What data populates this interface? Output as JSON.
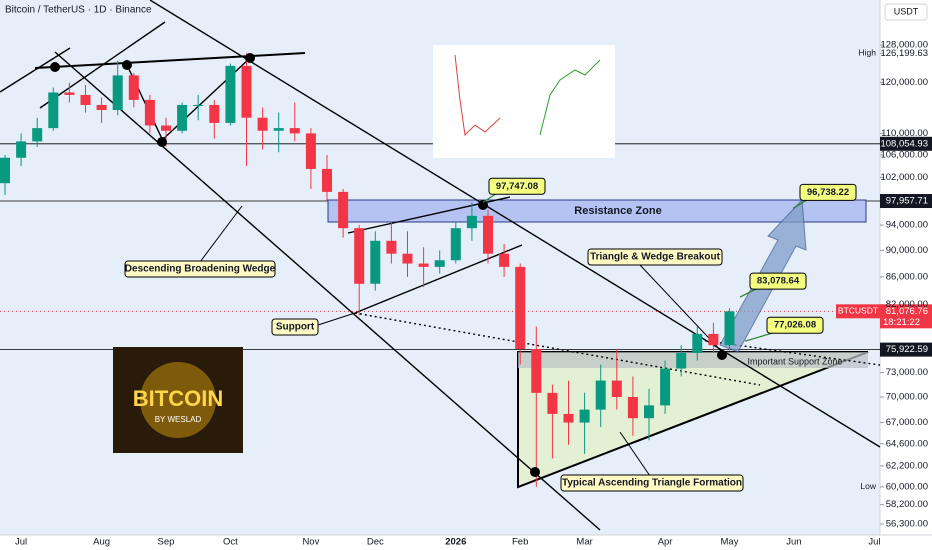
{
  "chart_data": {
    "type": "candlestick",
    "title": "Bitcoin / TetherUS · 1D · Binance",
    "currency": "USDT",
    "categories": [
      null,
      "Jul",
      null,
      null,
      null,
      null,
      "Aug",
      null,
      null,
      null,
      "Sep",
      null,
      null,
      null,
      "Oct",
      null,
      null,
      null,
      null,
      "Nov",
      null,
      null,
      null,
      "Dec",
      null,
      null,
      null,
      null,
      "2026",
      null,
      null,
      null,
      "Feb",
      null,
      null,
      null,
      "Mar",
      null,
      null,
      null,
      null,
      "Apr",
      null,
      null,
      null,
      "May",
      null,
      null,
      null,
      "Jun",
      null,
      null,
      null,
      null,
      "Jul"
    ],
    "open": [
      101000,
      105500,
      108500,
      111000,
      118000,
      117500,
      115500,
      114500,
      121500,
      116500,
      111500,
      110500,
      115500,
      115500,
      112000,
      123500,
      113000,
      110500,
      111000,
      110000,
      103500,
      99500,
      93500,
      85000,
      91500,
      89500,
      88000,
      87500,
      88500,
      93500,
      95500,
      89500,
      87500,
      76000,
      70500,
      68000,
      67000,
      68500,
      72000,
      70000,
      67500,
      69000,
      73500,
      75500,
      78000,
      76500,
      null,
      null,
      null,
      null,
      null,
      null,
      null,
      null,
      null
    ],
    "high": [
      106000,
      110000,
      113000,
      119000,
      120000,
      119500,
      117000,
      124500,
      122000,
      117500,
      113000,
      116000,
      117500,
      116500,
      124000,
      126199.63,
      115000,
      114000,
      116000,
      111000,
      106000,
      100000,
      94000,
      93000,
      94500,
      93000,
      90500,
      90000,
      94500,
      97747.08,
      96500,
      91000,
      88000,
      79000,
      71500,
      72000,
      70500,
      74000,
      76000,
      72500,
      71000,
      74500,
      76500,
      79000,
      79500,
      81500,
      null,
      null,
      null,
      null,
      null,
      null,
      null,
      null,
      null
    ],
    "low": [
      99000,
      104000,
      107500,
      110500,
      116000,
      114000,
      112000,
      113500,
      115000,
      110000,
      107500,
      110000,
      112500,
      109000,
      111500,
      104000,
      107000,
      106500,
      108500,
      100000,
      98000,
      92000,
      80500,
      84000,
      88000,
      86000,
      84500,
      86500,
      88000,
      91500,
      88000,
      86000,
      74000,
      60000,
      63000,
      64500,
      63500,
      66500,
      68500,
      65500,
      65000,
      68000,
      72500,
      74500,
      75500,
      75800,
      null,
      null,
      null,
      null,
      null,
      null,
      null,
      null,
      null
    ],
    "close": [
      105500,
      108500,
      111000,
      118000,
      117500,
      115500,
      114500,
      121500,
      116500,
      111500,
      110500,
      115500,
      115500,
      112000,
      123500,
      113000,
      110500,
      111000,
      110000,
      103500,
      99500,
      93500,
      85000,
      91500,
      89500,
      88000,
      87500,
      88500,
      93500,
      95500,
      89500,
      87500,
      76000,
      70500,
      68000,
      67000,
      68500,
      72000,
      70000,
      67500,
      69000,
      73500,
      75500,
      78000,
      76500,
      81076.76,
      null,
      null,
      null,
      null,
      null,
      null,
      null,
      null,
      null
    ],
    "up_color": "#089981",
    "down_color": "#f23645",
    "ylim": [
      55250,
      138270
    ],
    "log_scale": true,
    "yticks": [
      {
        "value": 128000,
        "label": "128,000.00"
      },
      {
        "value": 120000,
        "label": "120,000.00"
      },
      {
        "value": 110000,
        "label": "110,000.00"
      },
      {
        "value": 106000,
        "label": "106,000.00"
      },
      {
        "value": 102000,
        "label": "102,000.00"
      },
      {
        "value": 94000,
        "label": "94,000.00"
      },
      {
        "value": 90000,
        "label": "90,000.00"
      },
      {
        "value": 86000,
        "label": "86,000.00"
      },
      {
        "value": 82000,
        "label": "82,000.00"
      },
      {
        "value": 73000,
        "label": "73,000.00"
      },
      {
        "value": 70000,
        "label": "70,000.00"
      },
      {
        "value": 67000,
        "label": "67,000.00"
      },
      {
        "value": 64600,
        "label": "64,600.00"
      },
      {
        "value": 62200,
        "label": "62,200.00"
      },
      {
        "value": 58200,
        "label": "58,200.00"
      },
      {
        "value": 56300,
        "label": "56,300.00"
      }
    ],
    "price_markers": [
      {
        "value": 126199.63,
        "label": "126,199.63",
        "tag": "High",
        "style": "plain"
      },
      {
        "value": 108054.93,
        "label": "108,054.93",
        "style": "dark"
      },
      {
        "value": 97957.71,
        "label": "97,957.71",
        "style": "dark"
      },
      {
        "value": 81076.76,
        "label": "81,076.76",
        "tag": "BTCUSDT",
        "countdown": "18:21:22",
        "style": "red"
      },
      {
        "value": 75922.59,
        "label": "75,922.59",
        "style": "dark"
      },
      {
        "value": 60000,
        "label": "60,000.00",
        "tag": "Low",
        "style": "plain"
      }
    ],
    "callouts": [
      {
        "value": 97747.08,
        "label": "97,747.08"
      },
      {
        "value": 96738.22,
        "label": "96,738.22"
      },
      {
        "value": 83078.64,
        "label": "83,078.64"
      },
      {
        "value": 77026.08,
        "label": "77,026.08"
      }
    ],
    "annotations": {
      "resistance_zone": "Resistance Zone",
      "wedge": "Descending Broadening Wedge",
      "support": "Support",
      "breakout": "Triangle & Wedge Breakout",
      "support_zone": "Important Support Zone",
      "triangle": "Typical Ascending Triangle Formation",
      "logo_title": "BITCOIN",
      "logo_sub": "BY WESLAD"
    }
  }
}
